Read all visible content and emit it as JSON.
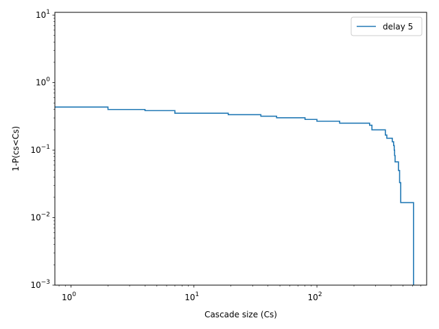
{
  "chart_data": {
    "type": "line",
    "xscale": "log",
    "yscale": "log",
    "xlim": [
      0.74,
      780
    ],
    "ylim": [
      0.001,
      11
    ],
    "xlabel": "Cascade size (Cs)",
    "ylabel": "1-P(cs<Cs)",
    "grid": false,
    "legend": {
      "position": "top-right",
      "entries": [
        "delay 5"
      ]
    },
    "x_major_ticks": [
      {
        "value": 1,
        "base": "10",
        "exp": "0"
      },
      {
        "value": 10,
        "base": "10",
        "exp": "1"
      },
      {
        "value": 100,
        "base": "10",
        "exp": "2"
      }
    ],
    "y_major_ticks": [
      {
        "value": 0.001,
        "base": "10",
        "exp": "−3"
      },
      {
        "value": 0.01,
        "base": "10",
        "exp": "−2"
      },
      {
        "value": 0.1,
        "base": "10",
        "exp": "−1"
      },
      {
        "value": 1,
        "base": "10",
        "exp": "0"
      },
      {
        "value": 10,
        "base": "10",
        "exp": "1"
      }
    ],
    "series": [
      {
        "name": "delay 5",
        "color": "#1f77b4",
        "step": true,
        "x": [
          0.74,
          1,
          2,
          3,
          4,
          5,
          7,
          18,
          19,
          34,
          35,
          46,
          47,
          78,
          80,
          95,
          100,
          117,
          153,
          268,
          280,
          350,
          360,
          370,
          400,
          410,
          420,
          425,
          428,
          432,
          455,
          460,
          470,
          480,
          600,
          610,
          610
        ],
        "y": [
          0.435,
          0.435,
          0.4,
          0.4,
          0.385,
          0.385,
          0.352,
          0.352,
          0.335,
          0.335,
          0.318,
          0.318,
          0.302,
          0.302,
          0.285,
          0.285,
          0.268,
          0.268,
          0.251,
          0.234,
          0.2,
          0.2,
          0.167,
          0.15,
          0.15,
          0.133,
          0.117,
          0.1,
          0.083,
          0.067,
          0.067,
          0.05,
          0.033,
          0.0167,
          0.0167,
          0.0167,
          0.0009
        ]
      }
    ]
  }
}
